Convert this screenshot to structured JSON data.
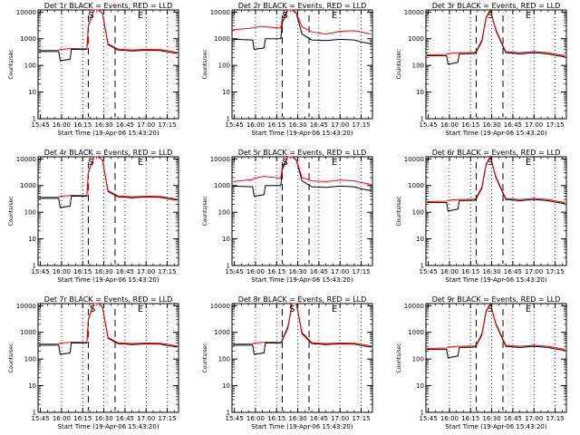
{
  "chart_data": {
    "type": "line",
    "grid": false,
    "layout": "3x3 panels",
    "colors": {
      "events": "#000000",
      "lld": "#ff0000",
      "axes": "#000000",
      "background": "#ffffff"
    },
    "shared": {
      "ylabel": "Counts/sec",
      "xlabel": "Start Time (19-Apr-06 15:43:20)",
      "yscale": "log",
      "ylim": [
        1,
        12000
      ],
      "yticks": [
        "1",
        "10",
        "100",
        "1000",
        "10000"
      ],
      "xticks": [
        "15:45",
        "16:00",
        "16:15",
        "16:30",
        "16:45",
        "17:00",
        "17:15"
      ],
      "xlim": [
        "15:43:20",
        "17:23:00"
      ],
      "dotted_lines": [
        "16:00",
        "16:15",
        "16:30",
        "16:45",
        "17:00",
        "17:15"
      ],
      "dashed_lines": [
        "16:19",
        "16:38"
      ],
      "markers": [
        "S",
        "E"
      ]
    },
    "panels": [
      {
        "title": "Det 1r BLACK = Events, RED = LLD",
        "marker_times": [
          "16:21",
          "16:56"
        ],
        "series": [
          {
            "name": "Events",
            "x": [
              "15:44",
              "15:58",
              "15:59",
              "16:06",
              "16:07",
              "16:18",
              "16:19",
              "16:23",
              "16:26",
              "16:29",
              "16:33",
              "16:40",
              "16:50",
              "17:00",
              "17:10",
              "17:15",
              "17:22"
            ],
            "y": [
              330,
              330,
              150,
              170,
              400,
              400,
              3000,
              12000,
              12000,
              9000,
              600,
              380,
              350,
              370,
              360,
              320,
              280
            ]
          },
          {
            "name": "LLD",
            "x": [
              "15:44",
              "15:58",
              "15:59",
              "16:06",
              "16:07",
              "16:18",
              "16:19",
              "16:23",
              "16:26",
              "16:29",
              "16:33",
              "16:40",
              "16:50",
              "17:00",
              "17:10",
              "17:15",
              "17:22"
            ],
            "y": [
              360,
              370,
              400,
              420,
              430,
              420,
              3200,
              12000,
              12000,
              9200,
              650,
              410,
              380,
              400,
              390,
              360,
              310
            ]
          }
        ]
      },
      {
        "title": "Det 2r BLACK = Events, RED = LLD",
        "marker_times": [
          "16:21",
          "16:56"
        ],
        "series": [
          {
            "name": "Events",
            "x": [
              "15:44",
              "15:58",
              "15:59",
              "16:06",
              "16:07",
              "16:18",
              "16:19",
              "16:23",
              "16:26",
              "16:29",
              "16:33",
              "16:40",
              "16:50",
              "17:00",
              "17:10",
              "17:15",
              "17:22"
            ],
            "y": [
              950,
              900,
              400,
              450,
              1000,
              1000,
              4000,
              12000,
              12000,
              9000,
              1500,
              900,
              850,
              950,
              900,
              750,
              650
            ]
          },
          {
            "name": "LLD",
            "x": [
              "15:44",
              "15:58",
              "15:59",
              "16:06",
              "16:07",
              "16:18",
              "16:19",
              "16:23",
              "16:26",
              "16:29",
              "16:33",
              "16:40",
              "16:50",
              "17:00",
              "17:10",
              "17:15",
              "17:22"
            ],
            "y": [
              2200,
              2500,
              2700,
              2900,
              2800,
              2500,
              6000,
              12000,
              12000,
              9500,
              2800,
              1800,
              1500,
              1900,
              2000,
              1800,
              1500
            ]
          }
        ]
      },
      {
        "title": "Det 3r BLACK = Events, RED = LLD",
        "marker_times": [
          "16:29",
          "16:56"
        ],
        "series": [
          {
            "name": "Events",
            "x": [
              "15:44",
              "15:58",
              "15:59",
              "16:06",
              "16:07",
              "16:18",
              "16:19",
              "16:23",
              "16:26",
              "16:29",
              "16:33",
              "16:40",
              "16:50",
              "17:00",
              "17:10",
              "17:15",
              "17:22"
            ],
            "y": [
              230,
              230,
              110,
              130,
              270,
              280,
              320,
              800,
              6000,
              12000,
              2000,
              300,
              270,
              300,
              270,
              240,
              210
            ]
          },
          {
            "name": "LLD",
            "x": [
              "15:44",
              "15:58",
              "15:59",
              "16:06",
              "16:07",
              "16:18",
              "16:19",
              "16:23",
              "16:26",
              "16:29",
              "16:33",
              "16:40",
              "16:50",
              "17:00",
              "17:10",
              "17:15",
              "17:22"
            ],
            "y": [
              250,
              260,
              280,
              300,
              300,
              310,
              350,
              900,
              6500,
              12000,
              2200,
              330,
              300,
              330,
              300,
              270,
              230
            ]
          }
        ]
      },
      {
        "title": "Det 4r BLACK = Events, RED = LLD",
        "marker_times": [
          "16:21",
          "16:56"
        ],
        "series": [
          {
            "name": "Events",
            "x": [
              "15:44",
              "15:58",
              "15:59",
              "16:06",
              "16:07",
              "16:18",
              "16:19",
              "16:23",
              "16:26",
              "16:29",
              "16:33",
              "16:40",
              "16:50",
              "17:00",
              "17:10",
              "17:15",
              "17:22"
            ],
            "y": [
              330,
              330,
              150,
              170,
              400,
              400,
              3000,
              12000,
              12000,
              9000,
              600,
              380,
              350,
              370,
              360,
              320,
              280
            ]
          },
          {
            "name": "LLD",
            "x": [
              "15:44",
              "15:58",
              "15:59",
              "16:06",
              "16:07",
              "16:18",
              "16:19",
              "16:23",
              "16:26",
              "16:29",
              "16:33",
              "16:40",
              "16:50",
              "17:00",
              "17:10",
              "17:15",
              "17:22"
            ],
            "y": [
              360,
              370,
              400,
              420,
              430,
              420,
              3200,
              12000,
              12000,
              9200,
              650,
              410,
              380,
              400,
              390,
              360,
              310
            ]
          }
        ]
      },
      {
        "title": "Det 5r BLACK = Events, RED = LLD",
        "marker_times": [
          "16:21",
          "16:56"
        ],
        "series": [
          {
            "name": "Events",
            "x": [
              "15:44",
              "15:58",
              "15:59",
              "16:06",
              "16:07",
              "16:18",
              "16:19",
              "16:23",
              "16:26",
              "16:29",
              "16:33",
              "16:40",
              "16:50",
              "17:00",
              "17:10",
              "17:15",
              "17:22"
            ],
            "y": [
              950,
              900,
              400,
              450,
              1000,
              1000,
              4000,
              12000,
              12000,
              9000,
              1500,
              900,
              850,
              950,
              900,
              750,
              650
            ]
          },
          {
            "name": "LLD",
            "x": [
              "15:44",
              "15:58",
              "15:59",
              "16:06",
              "16:07",
              "16:18",
              "16:19",
              "16:23",
              "16:26",
              "16:29",
              "16:33",
              "16:40",
              "16:50",
              "17:00",
              "17:10",
              "17:15",
              "17:22"
            ],
            "y": [
              1400,
              1700,
              1900,
              2200,
              2200,
              1900,
              5000,
              12000,
              12000,
              9500,
              2000,
              1500,
              1400,
              1600,
              1500,
              1300,
              1100
            ]
          }
        ]
      },
      {
        "title": "Det 6r BLACK = Events, RED = LLD",
        "marker_times": [
          "16:29",
          "16:56"
        ],
        "series": [
          {
            "name": "Events",
            "x": [
              "15:44",
              "15:58",
              "15:59",
              "16:06",
              "16:07",
              "16:18",
              "16:19",
              "16:23",
              "16:26",
              "16:29",
              "16:33",
              "16:40",
              "16:50",
              "17:00",
              "17:10",
              "17:15",
              "17:22"
            ],
            "y": [
              230,
              230,
              110,
              130,
              270,
              280,
              320,
              800,
              6000,
              12000,
              2000,
              300,
              270,
              300,
              270,
              240,
              210
            ]
          },
          {
            "name": "LLD",
            "x": [
              "15:44",
              "15:58",
              "15:59",
              "16:06",
              "16:07",
              "16:18",
              "16:19",
              "16:23",
              "16:26",
              "16:29",
              "16:33",
              "16:40",
              "16:50",
              "17:00",
              "17:10",
              "17:15",
              "17:22"
            ],
            "y": [
              250,
              260,
              280,
              300,
              300,
              310,
              350,
              900,
              6500,
              12000,
              2200,
              330,
              300,
              330,
              300,
              270,
              230
            ]
          }
        ]
      },
      {
        "title": "Det 7r BLACK = Events, RED = LLD",
        "marker_times": [
          "16:22",
          "16:56"
        ],
        "series": [
          {
            "name": "Events",
            "x": [
              "15:44",
              "15:58",
              "15:59",
              "16:06",
              "16:07",
              "16:18",
              "16:19",
              "16:23",
              "16:26",
              "16:29",
              "16:33",
              "16:40",
              "16:50",
              "17:00",
              "17:10",
              "17:15",
              "17:22"
            ],
            "y": [
              330,
              330,
              150,
              170,
              400,
              400,
              3000,
              12000,
              12000,
              9000,
              600,
              380,
              350,
              370,
              360,
              320,
              280
            ]
          },
          {
            "name": "LLD",
            "x": [
              "15:44",
              "15:58",
              "15:59",
              "16:06",
              "16:07",
              "16:18",
              "16:19",
              "16:23",
              "16:26",
              "16:29",
              "16:33",
              "16:40",
              "16:50",
              "17:00",
              "17:10",
              "17:15",
              "17:22"
            ],
            "y": [
              360,
              370,
              400,
              420,
              430,
              420,
              3200,
              12000,
              12000,
              9200,
              650,
              410,
              380,
              400,
              390,
              360,
              310
            ]
          }
        ]
      },
      {
        "title": "Det 8r BLACK = Events, RED = LLD",
        "marker_times": [
          "16:26",
          "16:56"
        ],
        "series": [
          {
            "name": "Events",
            "x": [
              "15:44",
              "15:58",
              "15:59",
              "16:06",
              "16:07",
              "16:18",
              "16:19",
              "16:23",
              "16:26",
              "16:29",
              "16:33",
              "16:40",
              "16:50",
              "17:00",
              "17:10",
              "17:15",
              "17:22"
            ],
            "y": [
              330,
              330,
              150,
              170,
              400,
              400,
              500,
              1500,
              12000,
              12000,
              900,
              380,
              350,
              370,
              360,
              320,
              280
            ]
          },
          {
            "name": "LLD",
            "x": [
              "15:44",
              "15:58",
              "15:59",
              "16:06",
              "16:07",
              "16:18",
              "16:19",
              "16:23",
              "16:26",
              "16:29",
              "16:33",
              "16:40",
              "16:50",
              "17:00",
              "17:10",
              "17:15",
              "17:22"
            ],
            "y": [
              360,
              370,
              400,
              420,
              430,
              420,
              550,
              1700,
              12000,
              12000,
              1000,
              410,
              380,
              400,
              390,
              360,
              310
            ]
          }
        ]
      },
      {
        "title": "Det 9r BLACK = Events, RED = LLD",
        "marker_times": [
          "16:29",
          "16:56"
        ],
        "series": [
          {
            "name": "Events",
            "x": [
              "15:44",
              "15:58",
              "15:59",
              "16:06",
              "16:07",
              "16:18",
              "16:19",
              "16:23",
              "16:26",
              "16:29",
              "16:33",
              "16:40",
              "16:50",
              "17:00",
              "17:10",
              "17:15",
              "17:22"
            ],
            "y": [
              230,
              230,
              110,
              130,
              270,
              280,
              320,
              800,
              6000,
              12000,
              2000,
              300,
              270,
              300,
              270,
              240,
              210
            ]
          },
          {
            "name": "LLD",
            "x": [
              "15:44",
              "15:58",
              "15:59",
              "16:06",
              "16:07",
              "16:18",
              "16:19",
              "16:23",
              "16:26",
              "16:29",
              "16:33",
              "16:40",
              "16:50",
              "17:00",
              "17:10",
              "17:15",
              "17:22"
            ],
            "y": [
              250,
              260,
              280,
              300,
              300,
              310,
              350,
              900,
              6500,
              12000,
              2200,
              330,
              300,
              330,
              300,
              270,
              230
            ]
          }
        ]
      }
    ]
  }
}
